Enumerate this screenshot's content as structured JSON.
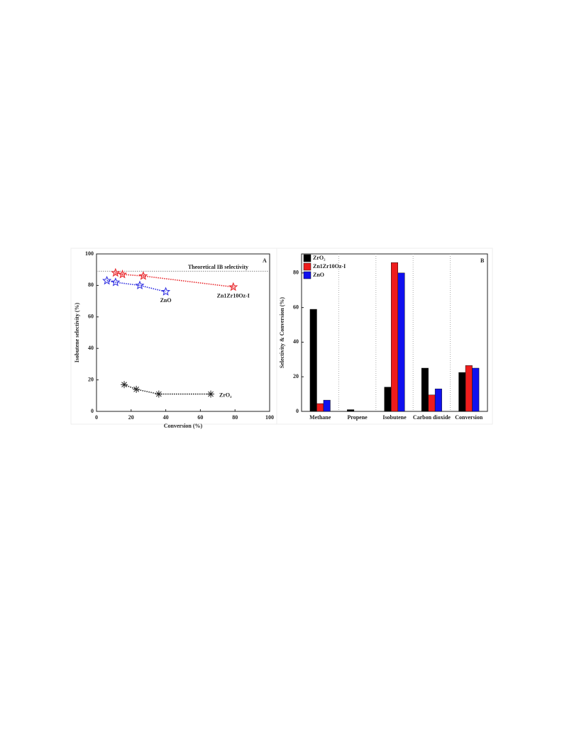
{
  "chart_data": [
    {
      "type": "scatter",
      "panel_label": "A",
      "x_label": "Conversion (%)",
      "y_label": "Isobutene selectivity (%)",
      "xlim": [
        0,
        100
      ],
      "xticks": [
        0,
        20,
        40,
        60,
        80,
        100
      ],
      "ylim": [
        0,
        100
      ],
      "yticks": [
        0,
        20,
        40,
        60,
        80,
        100
      ],
      "reference_line": {
        "text": "Theoretical IB selectivity",
        "y": 89
      },
      "series": [
        {
          "name": "Zn1Zr10Oz-I",
          "color": "#e8262a",
          "marker": "star",
          "x": [
            11,
            15,
            27,
            79
          ],
          "values": [
            88,
            87,
            86,
            79
          ]
        },
        {
          "name": "ZnO",
          "color": "#2a2ae0",
          "marker": "star-open",
          "x": [
            6,
            11,
            25,
            40
          ],
          "values": [
            83,
            82,
            80,
            76
          ]
        },
        {
          "name": "ZrO₂",
          "color": "#222222",
          "marker": "asterisk",
          "x": [
            16,
            23,
            36,
            66
          ],
          "values": [
            17,
            14,
            11,
            11
          ]
        }
      ]
    },
    {
      "type": "bar",
      "panel_label": "B",
      "y_label": "Selectivity & Conversion (%)",
      "categories": [
        "Methane",
        "Propene",
        "Isobutene",
        "Carbon dioxide",
        "Conversion"
      ],
      "ylim": [
        0,
        91
      ],
      "yticks": [
        0,
        20,
        40,
        60,
        80
      ],
      "legend": "top-left",
      "series": [
        {
          "name": "ZrO₂",
          "color": "#000000",
          "values": [
            59,
            1,
            14,
            25,
            22.5
          ]
        },
        {
          "name": "Zn1Zr10Oz-I",
          "color": "#ee1c1c",
          "values": [
            4.5,
            0,
            86,
            9.5,
            26.5
          ]
        },
        {
          "name": "ZnO",
          "color": "#1010ee",
          "values": [
            6.5,
            0,
            80,
            13,
            25
          ]
        }
      ]
    }
  ]
}
